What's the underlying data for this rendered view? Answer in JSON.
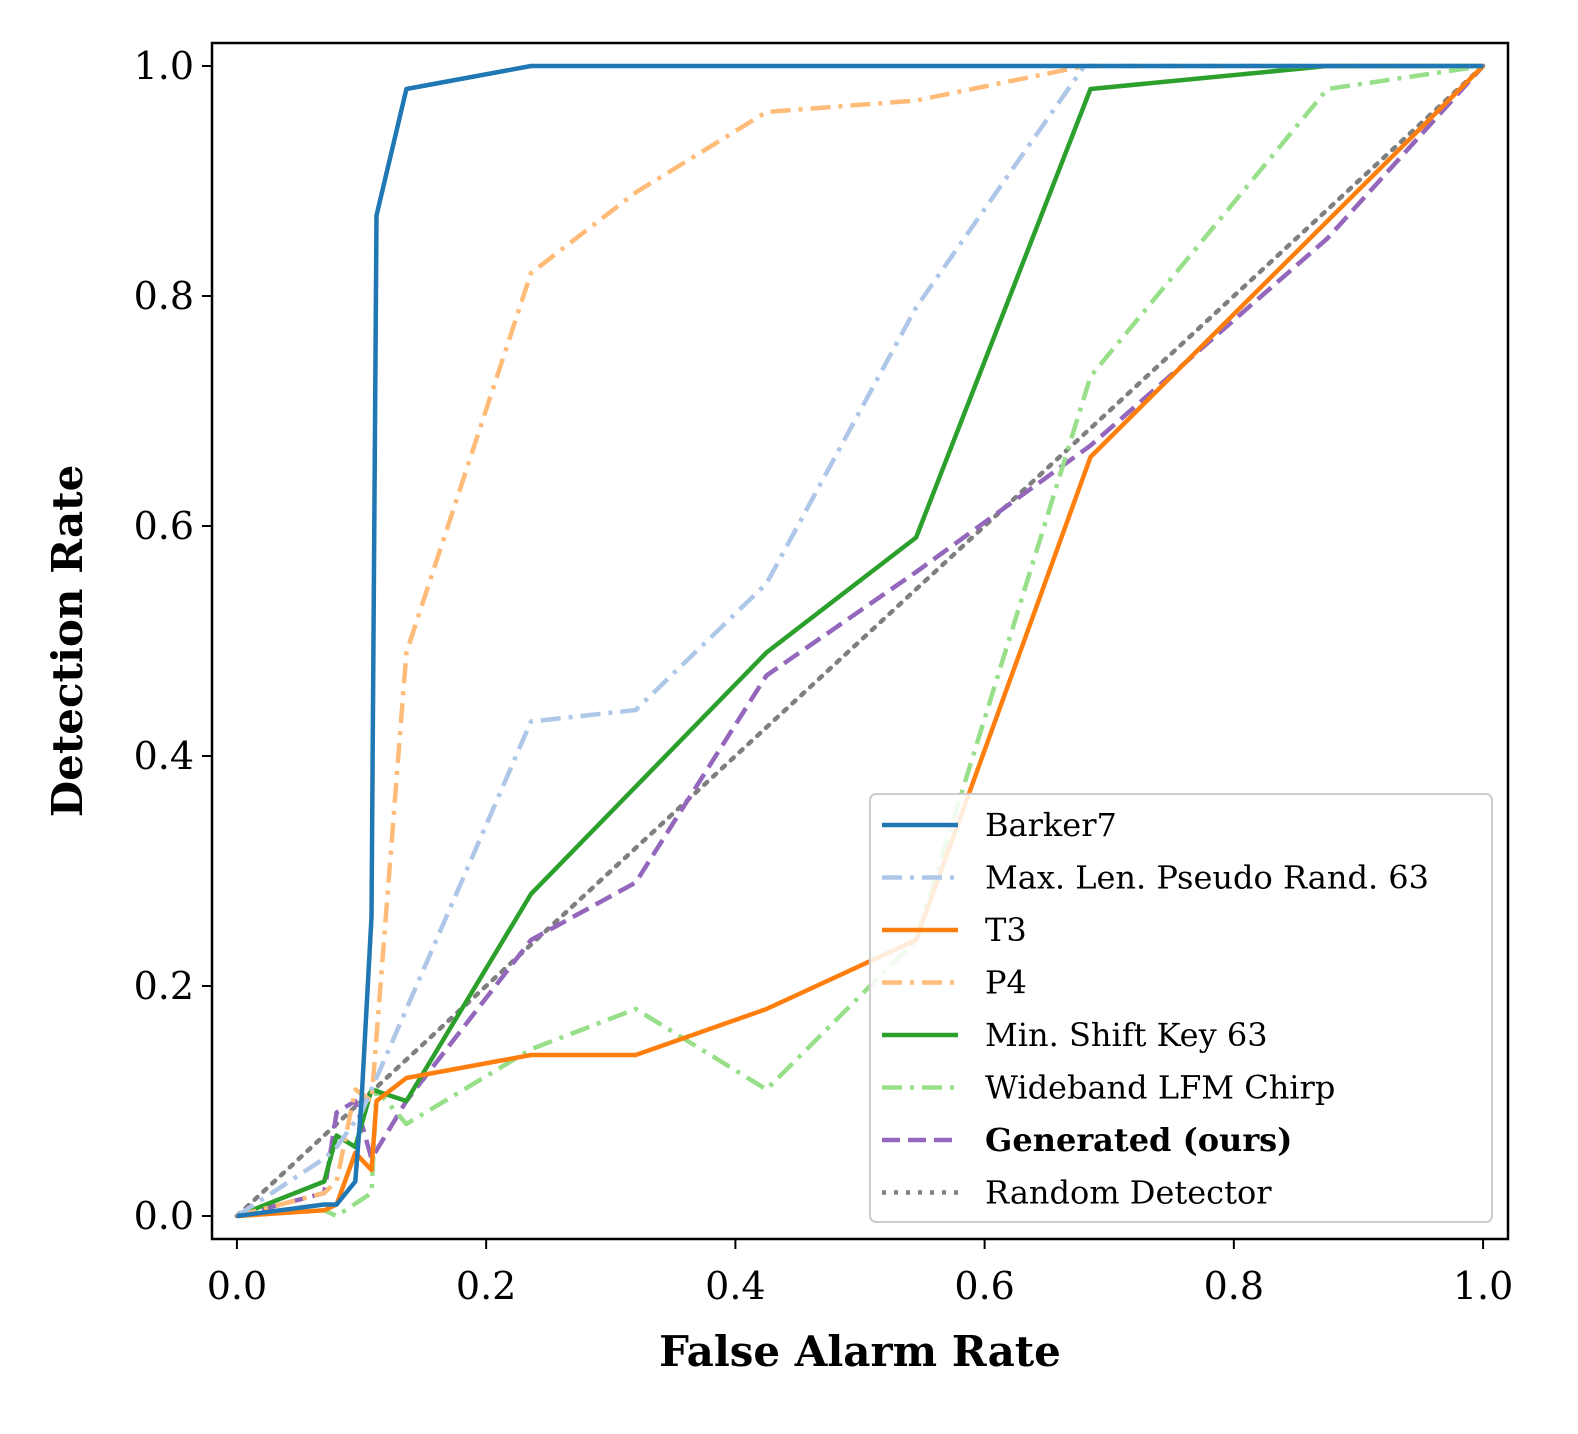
{
  "chart_data": {
    "type": "line",
    "title": "",
    "xlabel": "False Alarm Rate",
    "ylabel": "Detection Rate",
    "xlim": [
      -0.02,
      1.02
    ],
    "ylim": [
      -0.02,
      1.02
    ],
    "xticks": [
      0.0,
      0.2,
      0.4,
      0.6,
      0.8,
      1.0
    ],
    "yticks": [
      0.0,
      0.2,
      0.4,
      0.6,
      0.8,
      1.0
    ],
    "xtick_labels": [
      "0.0",
      "0.2",
      "0.4",
      "0.6",
      "0.8",
      "1.0"
    ],
    "ytick_labels": [
      "0.0",
      "0.2",
      "0.4",
      "0.6",
      "0.8",
      "1.0"
    ],
    "legend_position": "lower-right",
    "series": [
      {
        "name": "Barker7",
        "color": "#1f77b4",
        "style": "solid",
        "bold": false,
        "x": [
          0.0,
          0.07,
          0.08,
          0.095,
          0.1,
          0.108,
          0.112,
          0.136,
          0.236,
          1.0
        ],
        "y": [
          0.0,
          0.01,
          0.01,
          0.03,
          0.1,
          0.26,
          0.87,
          0.98,
          1.0,
          1.0
        ]
      },
      {
        "name": "Max. Len. Pseudo Rand. 63",
        "color": "#aec7e8",
        "style": "dashdot",
        "bold": false,
        "x": [
          0.0,
          0.07,
          0.08,
          0.1,
          0.136,
          0.236,
          0.32,
          0.425,
          0.545,
          0.68,
          1.0
        ],
        "y": [
          0.0,
          0.05,
          0.06,
          0.09,
          0.18,
          0.43,
          0.44,
          0.55,
          0.79,
          1.0,
          1.0
        ]
      },
      {
        "name": "T3",
        "color": "#ff7f0e",
        "style": "solid",
        "bold": false,
        "x": [
          0.0,
          0.07,
          0.08,
          0.095,
          0.108,
          0.112,
          0.136,
          0.236,
          0.32,
          0.425,
          0.545,
          0.685,
          1.0
        ],
        "y": [
          0.0,
          0.005,
          0.01,
          0.055,
          0.04,
          0.1,
          0.12,
          0.14,
          0.14,
          0.18,
          0.24,
          0.66,
          1.0
        ]
      },
      {
        "name": "P4",
        "color": "#ffbb78",
        "style": "dashdot",
        "bold": false,
        "x": [
          0.0,
          0.07,
          0.08,
          0.095,
          0.108,
          0.136,
          0.236,
          0.32,
          0.425,
          0.545,
          0.68,
          1.0
        ],
        "y": [
          0.0,
          0.02,
          0.03,
          0.11,
          0.1,
          0.49,
          0.82,
          0.89,
          0.96,
          0.97,
          1.0,
          1.0
        ]
      },
      {
        "name": "Min. Shift Key 63",
        "color": "#2ca02c",
        "style": "solid",
        "bold": false,
        "x": [
          0.0,
          0.07,
          0.08,
          0.095,
          0.108,
          0.136,
          0.236,
          0.425,
          0.545,
          0.685,
          0.875,
          1.0
        ],
        "y": [
          0.0,
          0.03,
          0.07,
          0.06,
          0.11,
          0.1,
          0.28,
          0.49,
          0.59,
          0.98,
          1.0,
          1.0
        ]
      },
      {
        "name": "Wideband LFM Chirp",
        "color": "#98df8a",
        "style": "dashdot",
        "bold": false,
        "x": [
          0.0,
          0.07,
          0.08,
          0.108,
          0.112,
          0.136,
          0.236,
          0.32,
          0.425,
          0.545,
          0.685,
          0.875,
          1.0
        ],
        "y": [
          0.0,
          0.005,
          0.0,
          0.02,
          0.11,
          0.08,
          0.145,
          0.18,
          0.11,
          0.24,
          0.73,
          0.98,
          1.0
        ]
      },
      {
        "name": "Generated (ours)",
        "color": "#9467bd",
        "style": "dashed",
        "bold": true,
        "x": [
          0.0,
          0.07,
          0.08,
          0.095,
          0.108,
          0.136,
          0.236,
          0.32,
          0.425,
          0.545,
          0.685,
          0.875,
          1.0
        ],
        "y": [
          0.0,
          0.02,
          0.09,
          0.1,
          0.05,
          0.1,
          0.24,
          0.29,
          0.47,
          0.56,
          0.67,
          0.85,
          1.0
        ]
      },
      {
        "name": "Random Detector",
        "color": "#7f7f7f",
        "style": "dotted",
        "bold": false,
        "x": [
          0.0,
          1.0
        ],
        "y": [
          0.0,
          1.0
        ]
      }
    ]
  }
}
